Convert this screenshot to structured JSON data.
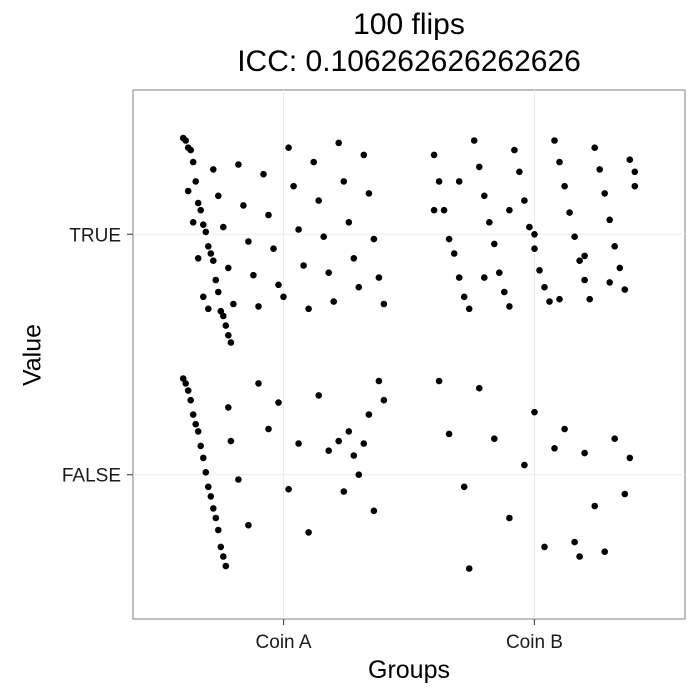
{
  "chart_data": {
    "type": "scatter",
    "title": [
      "100 flips",
      "ICC: 0.106262626262626"
    ],
    "xlabel": "Groups",
    "ylabel": "Value",
    "x_categories": [
      "Coin A",
      "Coin B"
    ],
    "y_categories": [
      "FALSE",
      "TRUE"
    ],
    "grid": true,
    "jitter_note_free": true,
    "series": [
      {
        "name": "",
        "points": [
          [
            0.6,
            1.4
          ],
          [
            0.61,
            1.39
          ],
          [
            0.62,
            1.36
          ],
          [
            0.63,
            1.35
          ],
          [
            0.64,
            1.3
          ],
          [
            0.65,
            1.22
          ],
          [
            0.66,
            1.13
          ],
          [
            0.67,
            1.1
          ],
          [
            0.68,
            1.04
          ],
          [
            0.69,
            1.01
          ],
          [
            0.7,
            0.95
          ],
          [
            0.71,
            0.92
          ],
          [
            0.72,
            0.89
          ],
          [
            0.73,
            0.81
          ],
          [
            0.74,
            0.76
          ],
          [
            0.75,
            0.68
          ],
          [
            0.76,
            0.66
          ],
          [
            0.77,
            0.62
          ],
          [
            0.78,
            0.58
          ],
          [
            0.79,
            0.55
          ],
          [
            0.62,
            1.18
          ],
          [
            0.64,
            1.05
          ],
          [
            0.66,
            0.9
          ],
          [
            0.68,
            0.74
          ],
          [
            0.7,
            0.69
          ],
          [
            0.72,
            1.27
          ],
          [
            0.74,
            1.16
          ],
          [
            0.76,
            1.03
          ],
          [
            0.78,
            0.86
          ],
          [
            0.8,
            0.71
          ],
          [
            0.82,
            1.29
          ],
          [
            0.84,
            1.12
          ],
          [
            0.86,
            0.97
          ],
          [
            0.88,
            0.83
          ],
          [
            0.9,
            0.7
          ],
          [
            0.92,
            1.25
          ],
          [
            0.94,
            1.08
          ],
          [
            0.96,
            0.94
          ],
          [
            0.98,
            0.79
          ],
          [
            1.0,
            0.74
          ],
          [
            1.02,
            1.36
          ],
          [
            1.04,
            1.2
          ],
          [
            1.06,
            1.02
          ],
          [
            1.08,
            0.87
          ],
          [
            1.1,
            0.69
          ],
          [
            1.12,
            1.3
          ],
          [
            1.14,
            1.14
          ],
          [
            1.16,
            0.99
          ],
          [
            1.18,
            0.84
          ],
          [
            1.2,
            0.72
          ],
          [
            1.22,
            1.38
          ],
          [
            1.24,
            1.22
          ],
          [
            1.26,
            1.05
          ],
          [
            1.28,
            0.9
          ],
          [
            1.3,
            0.78
          ],
          [
            1.32,
            1.33
          ],
          [
            1.34,
            1.17
          ],
          [
            1.36,
            0.98
          ],
          [
            1.38,
            0.82
          ],
          [
            1.4,
            0.71
          ],
          [
            0.6,
            0.4
          ],
          [
            0.61,
            0.38
          ],
          [
            0.62,
            0.35
          ],
          [
            0.63,
            0.31
          ],
          [
            0.64,
            0.25
          ],
          [
            0.65,
            0.21
          ],
          [
            0.66,
            0.18
          ],
          [
            0.67,
            0.12
          ],
          [
            0.68,
            0.07
          ],
          [
            0.69,
            0.01
          ],
          [
            0.7,
            -0.05
          ],
          [
            0.71,
            -0.09
          ],
          [
            0.72,
            -0.14
          ],
          [
            0.73,
            -0.18
          ],
          [
            0.74,
            -0.23
          ],
          [
            0.75,
            -0.3
          ],
          [
            0.76,
            -0.34
          ],
          [
            0.77,
            -0.38
          ],
          [
            0.78,
            0.28
          ],
          [
            0.79,
            0.14
          ],
          [
            0.82,
            -0.02
          ],
          [
            0.86,
            -0.21
          ],
          [
            0.9,
            0.38
          ],
          [
            0.94,
            0.19
          ],
          [
            0.98,
            0.3
          ],
          [
            1.02,
            -0.06
          ],
          [
            1.06,
            0.13
          ],
          [
            1.1,
            -0.24
          ],
          [
            1.14,
            0.33
          ],
          [
            1.18,
            0.1
          ],
          [
            1.22,
            0.14
          ],
          [
            1.26,
            0.18
          ],
          [
            1.3,
            0.0
          ],
          [
            1.34,
            0.25
          ],
          [
            1.38,
            0.39
          ],
          [
            1.4,
            0.31
          ],
          [
            1.36,
            -0.15
          ],
          [
            1.32,
            0.13
          ],
          [
            1.28,
            0.08
          ],
          [
            1.24,
            -0.07
          ],
          [
            1.6,
            1.33
          ],
          [
            1.62,
            1.22
          ],
          [
            1.64,
            1.1
          ],
          [
            1.66,
            0.98
          ],
          [
            1.68,
            0.92
          ],
          [
            1.7,
            0.82
          ],
          [
            1.72,
            0.74
          ],
          [
            1.74,
            0.69
          ],
          [
            1.76,
            1.39
          ],
          [
            1.78,
            1.28
          ],
          [
            1.8,
            1.16
          ],
          [
            1.82,
            1.05
          ],
          [
            1.84,
            0.96
          ],
          [
            1.86,
            0.84
          ],
          [
            1.88,
            0.76
          ],
          [
            1.9,
            0.7
          ],
          [
            1.92,
            1.35
          ],
          [
            1.94,
            1.26
          ],
          [
            1.96,
            1.14
          ],
          [
            1.98,
            1.03
          ],
          [
            2.0,
            0.94
          ],
          [
            2.02,
            0.85
          ],
          [
            2.04,
            0.78
          ],
          [
            2.06,
            0.72
          ],
          [
            2.08,
            1.39
          ],
          [
            2.1,
            1.3
          ],
          [
            2.12,
            1.2
          ],
          [
            2.14,
            1.09
          ],
          [
            2.16,
            0.99
          ],
          [
            2.18,
            0.89
          ],
          [
            2.2,
            0.81
          ],
          [
            2.22,
            0.73
          ],
          [
            2.24,
            1.36
          ],
          [
            2.26,
            1.27
          ],
          [
            2.28,
            1.17
          ],
          [
            2.3,
            1.06
          ],
          [
            2.32,
            0.95
          ],
          [
            2.34,
            0.86
          ],
          [
            2.36,
            0.77
          ],
          [
            2.38,
            1.31
          ],
          [
            2.4,
            1.2
          ],
          [
            1.6,
            1.1
          ],
          [
            1.7,
            1.22
          ],
          [
            1.8,
            0.82
          ],
          [
            1.9,
            1.1
          ],
          [
            2.0,
            1.0
          ],
          [
            2.1,
            0.73
          ],
          [
            2.2,
            0.91
          ],
          [
            2.3,
            0.8
          ],
          [
            2.4,
            1.26
          ],
          [
            1.62,
            0.39
          ],
          [
            1.66,
            0.17
          ],
          [
            1.72,
            -0.05
          ],
          [
            1.78,
            0.36
          ],
          [
            1.84,
            0.15
          ],
          [
            1.9,
            -0.18
          ],
          [
            1.96,
            0.04
          ],
          [
            2.0,
            0.26
          ],
          [
            2.04,
            -0.3
          ],
          [
            2.08,
            0.11
          ],
          [
            2.12,
            0.19
          ],
          [
            2.16,
            -0.28
          ],
          [
            2.2,
            0.09
          ],
          [
            2.24,
            -0.13
          ],
          [
            2.28,
            -0.32
          ],
          [
            2.32,
            0.15
          ],
          [
            2.36,
            -0.08
          ],
          [
            2.38,
            0.07
          ],
          [
            1.74,
            -0.39
          ],
          [
            2.18,
            -0.34
          ]
        ]
      }
    ],
    "x_range": [
      0.4,
      2.6
    ],
    "y_range": [
      -0.6,
      1.6
    ]
  }
}
